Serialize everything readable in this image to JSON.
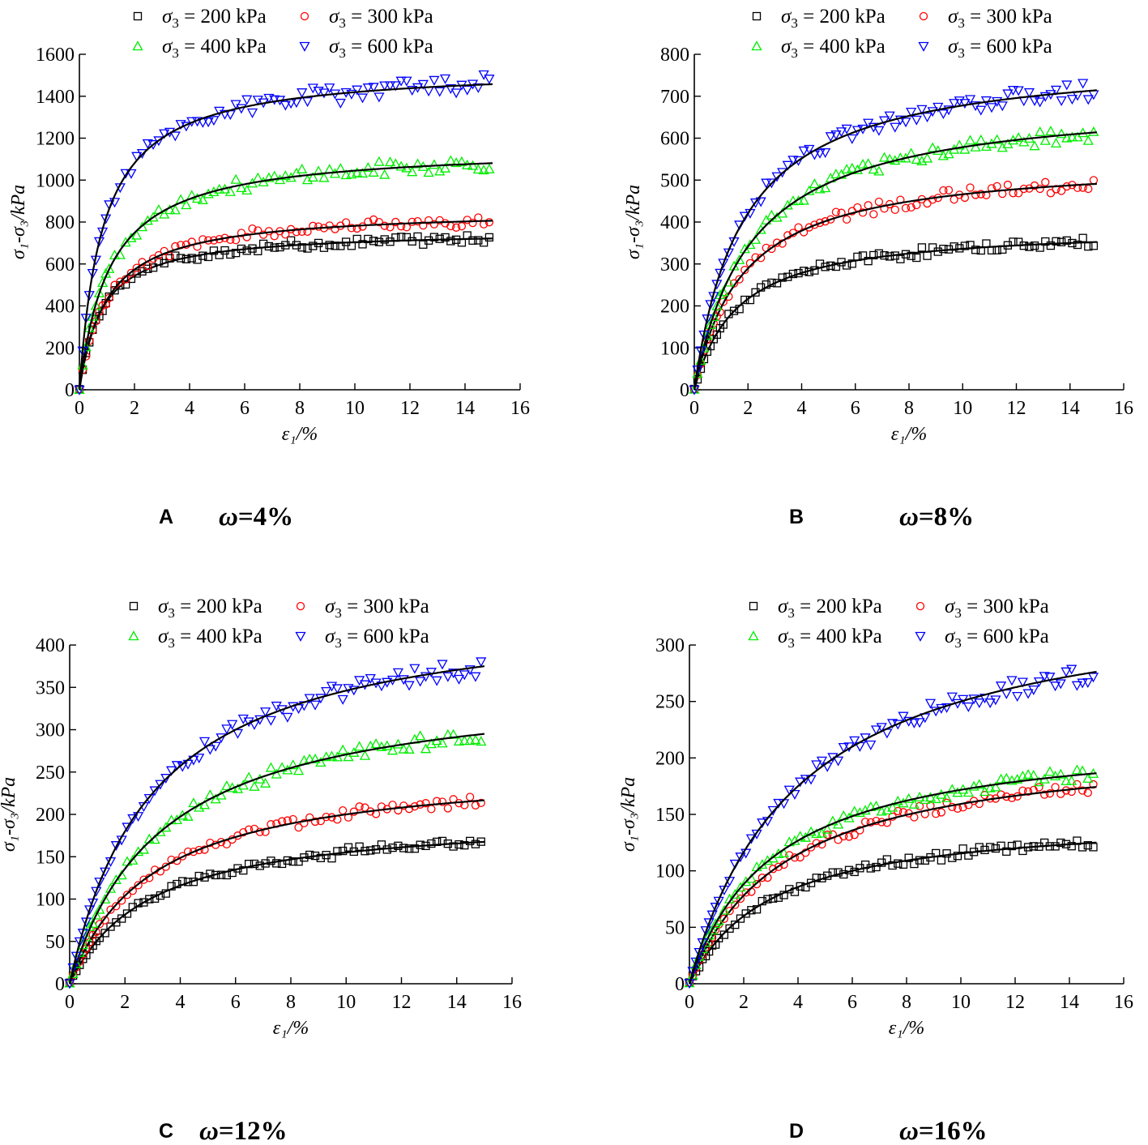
{
  "colors": {
    "s200": "#000000",
    "s300": "#ff0000",
    "s400": "#00ee00",
    "s600": "#0000ff",
    "fit": "#000000"
  },
  "legend": {
    "symbol": "σ",
    "sub": "3",
    "eq": " = ",
    "unit": " kPa"
  },
  "chart_data": [
    {
      "type": "scatter",
      "panel_label": "A",
      "caption_symbol": "ω",
      "caption_value": "=4%",
      "xlabel": "ε₁/%",
      "ylabel": "σ₁-σ₃/kPa",
      "xlim": [
        0,
        16
      ],
      "ylim": [
        0,
        1600
      ],
      "xticks": [
        "0",
        "2",
        "4",
        "6",
        "8",
        "10",
        "12",
        "14",
        "16"
      ],
      "yticks": [
        "0",
        "200",
        "400",
        "600",
        "800",
        "1000",
        "1200",
        "1400",
        "1600"
      ],
      "series": [
        {
          "name": "200",
          "label": "σ3 = 200 kPa",
          "marker": "square",
          "asymptote": 760,
          "half_strain": 0.8
        },
        {
          "name": "300",
          "label": "σ3 = 300 kPa",
          "marker": "circle",
          "asymptote": 860,
          "half_strain": 1.0
        },
        {
          "name": "400",
          "label": "σ3 = 400 kPa",
          "marker": "triangle-up",
          "asymptote": 1160,
          "half_strain": 1.1
        },
        {
          "name": "600",
          "label": "σ3 = 600 kPa",
          "marker": "triangle-down",
          "asymptote": 1540,
          "half_strain": 0.85
        }
      ]
    },
    {
      "type": "scatter",
      "panel_label": "B",
      "caption_symbol": "ω",
      "caption_value": "=8%",
      "xlabel": "ε₁/%",
      "ylabel": "σ₁-σ₃/kPa",
      "xlim": [
        0,
        16
      ],
      "ylim": [
        0,
        800
      ],
      "xticks": [
        "0",
        "2",
        "4",
        "6",
        "8",
        "10",
        "12",
        "14",
        "16"
      ],
      "yticks": [
        "0",
        "100",
        "200",
        "300",
        "400",
        "500",
        "600",
        "700",
        "800"
      ],
      "series": [
        {
          "name": "200",
          "label": "σ3 = 200 kPa",
          "marker": "square",
          "asymptote": 390,
          "half_strain": 1.6
        },
        {
          "name": "300",
          "label": "σ3 = 300 kPa",
          "marker": "circle",
          "asymptote": 550,
          "half_strain": 1.8
        },
        {
          "name": "400",
          "label": "σ3 = 400 kPa",
          "marker": "triangle-up",
          "asymptote": 700,
          "half_strain": 2.1
        },
        {
          "name": "600",
          "label": "σ3 = 600 kPa",
          "marker": "triangle-down",
          "asymptote": 800,
          "half_strain": 1.8
        }
      ]
    },
    {
      "type": "scatter",
      "panel_label": "C",
      "caption_symbol": "ω",
      "caption_value": "=12%",
      "xlabel": "ε₁/%",
      "ylabel": "σ₁-σ₃/kPa",
      "xlim": [
        0,
        16
      ],
      "ylim": [
        0,
        400
      ],
      "xticks": [
        "0",
        "2",
        "4",
        "6",
        "8",
        "10",
        "12",
        "14",
        "16"
      ],
      "yticks": [
        "0",
        "50",
        "100",
        "150",
        "200",
        "250",
        "300",
        "350",
        "400"
      ],
      "series": [
        {
          "name": "200",
          "label": "σ3 = 200 kPa",
          "marker": "square",
          "asymptote": 200,
          "half_strain": 2.9
        },
        {
          "name": "300",
          "label": "σ3 = 300 kPa",
          "marker": "circle",
          "asymptote": 260,
          "half_strain": 3.0
        },
        {
          "name": "400",
          "label": "σ3 = 400 kPa",
          "marker": "triangle-up",
          "asymptote": 360,
          "half_strain": 3.3
        },
        {
          "name": "600",
          "label": "σ3 = 600 kPa",
          "marker": "triangle-down",
          "asymptote": 450,
          "half_strain": 3.0
        }
      ]
    },
    {
      "type": "scatter",
      "panel_label": "D",
      "caption_symbol": "ω",
      "caption_value": "=16%",
      "xlabel": "ε₁/%",
      "ylabel": "σ₁-σ₃/kPa",
      "xlim": [
        0,
        16
      ],
      "ylim": [
        0,
        300
      ],
      "xticks": [
        "0",
        "2",
        "4",
        "6",
        "8",
        "10",
        "12",
        "14",
        "16"
      ],
      "yticks": [
        "0",
        "50",
        "100",
        "150",
        "200",
        "250",
        "300"
      ],
      "series": [
        {
          "name": "200",
          "label": "σ3 = 200 kPa",
          "marker": "square",
          "asymptote": 150,
          "half_strain": 3.0
        },
        {
          "name": "300",
          "label": "σ3 = 300 kPa",
          "marker": "circle",
          "asymptote": 215,
          "half_strain": 3.5
        },
        {
          "name": "400",
          "label": "σ3 = 400 kPa",
          "marker": "triangle-up",
          "asymptote": 225,
          "half_strain": 3.1
        },
        {
          "name": "600",
          "label": "σ3 = 600 kPa",
          "marker": "triangle-down",
          "asymptote": 350,
          "half_strain": 4.0
        }
      ]
    }
  ]
}
